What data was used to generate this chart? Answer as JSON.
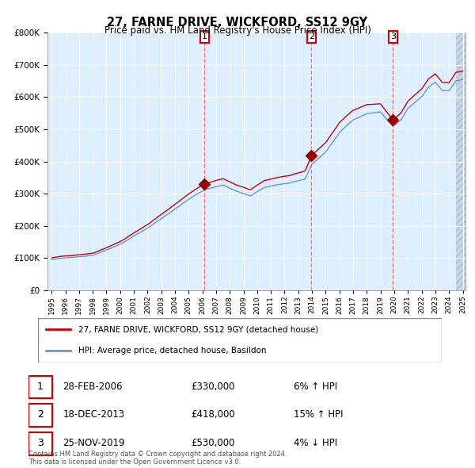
{
  "title": "27, FARNE DRIVE, WICKFORD, SS12 9GY",
  "subtitle": "Price paid vs. HM Land Registry's House Price Index (HPI)",
  "legend_line1": "27, FARNE DRIVE, WICKFORD, SS12 9GY (detached house)",
  "legend_line2": "HPI: Average price, detached house, Basildon",
  "transactions": [
    {
      "num": 1,
      "date": "28-FEB-2006",
      "price": 330000,
      "pct": "6%",
      "dir": "↑",
      "year": 2006.16
    },
    {
      "num": 2,
      "date": "18-DEC-2013",
      "price": 418000,
      "pct": "15%",
      "dir": "↑",
      "year": 2013.96
    },
    {
      "num": 3,
      "date": "25-NOV-2019",
      "price": 530000,
      "pct": "4%",
      "dir": "↓",
      "year": 2019.9
    }
  ],
  "footer": "Contains HM Land Registry data © Crown copyright and database right 2024.\nThis data is licensed under the Open Government Licence v3.0.",
  "red_line_color": "#cc0000",
  "blue_line_color": "#6699cc",
  "bg_color": "#ddeeff",
  "hatch_color": "#aabbcc",
  "grid_color": "#ffffff",
  "vline_color": "#ff6666",
  "marker_color": "#990000",
  "ylim": [
    0,
    800000
  ],
  "yticks": [
    0,
    100000,
    200000,
    300000,
    400000,
    500000,
    600000,
    700000,
    800000
  ],
  "start_year": 1995,
  "end_year": 2025
}
